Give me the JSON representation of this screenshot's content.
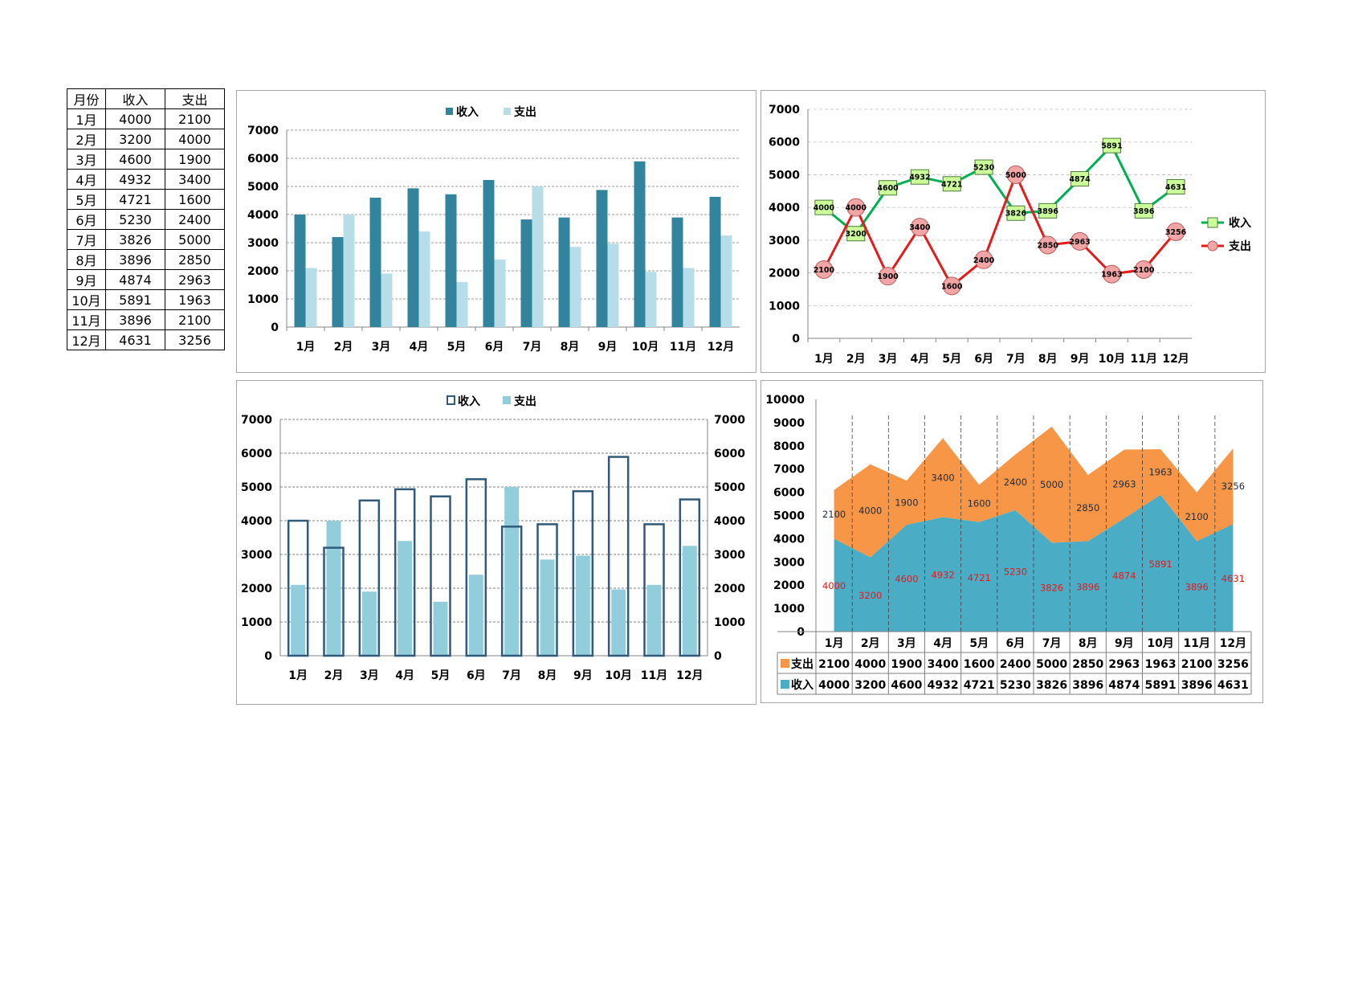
{
  "table": {
    "headers": [
      "月份",
      "收入",
      "支出"
    ],
    "rows": [
      [
        "1月",
        "4000",
        "2100"
      ],
      [
        "2月",
        "3200",
        "4000"
      ],
      [
        "3月",
        "4600",
        "1900"
      ],
      [
        "4月",
        "4932",
        "3400"
      ],
      [
        "5月",
        "4721",
        "1600"
      ],
      [
        "6月",
        "5230",
        "2400"
      ],
      [
        "7月",
        "3826",
        "5000"
      ],
      [
        "8月",
        "3896",
        "2850"
      ],
      [
        "9月",
        "4874",
        "2963"
      ],
      [
        "10月",
        "5891",
        "1963"
      ],
      [
        "11月",
        "3896",
        "2100"
      ],
      [
        "12月",
        "4631",
        "3256"
      ]
    ]
  },
  "chart_data": [
    {
      "id": "c1",
      "type": "bar",
      "categories": [
        "1月",
        "2月",
        "3月",
        "4月",
        "5月",
        "6月",
        "7月",
        "8月",
        "9月",
        "10月",
        "11月",
        "12月"
      ],
      "series": [
        {
          "name": "收入",
          "values": [
            4000,
            3200,
            4600,
            4932,
            4721,
            5230,
            3826,
            3896,
            4874,
            5891,
            3896,
            4631
          ],
          "color": "#31849b"
        },
        {
          "name": "支出",
          "values": [
            2100,
            4000,
            1900,
            3400,
            1600,
            2400,
            5000,
            2850,
            2963,
            1963,
            2100,
            3256
          ],
          "color": "#b7dee8"
        }
      ],
      "ylim": [
        0,
        7000
      ],
      "yticks": [
        0,
        1000,
        2000,
        3000,
        4000,
        5000,
        6000,
        7000
      ],
      "grid": true,
      "legend": "top"
    },
    {
      "id": "c2",
      "type": "line",
      "categories": [
        "1月",
        "2月",
        "3月",
        "4月",
        "5月",
        "6月",
        "7月",
        "8月",
        "9月",
        "10月",
        "11月",
        "12月"
      ],
      "series": [
        {
          "name": "收入",
          "values": [
            4000,
            3200,
            4600,
            4932,
            4721,
            5230,
            3826,
            3896,
            4874,
            5891,
            3896,
            4631
          ],
          "color": "#00b050",
          "marker": "square",
          "marker_color": "#ccff99"
        },
        {
          "name": "支出",
          "values": [
            2100,
            4000,
            1900,
            3400,
            1600,
            2400,
            5000,
            2850,
            2963,
            1963,
            2100,
            3256
          ],
          "color": "#e31b1b",
          "marker": "circle",
          "marker_color": "#f2a5a5"
        }
      ],
      "ylim": [
        0,
        7000
      ],
      "yticks": [
        0,
        1000,
        2000,
        3000,
        4000,
        5000,
        6000,
        7000
      ],
      "grid": true,
      "legend": "right",
      "data_labels": true
    },
    {
      "id": "c3",
      "type": "bar",
      "categories": [
        "1月",
        "2月",
        "3月",
        "4月",
        "5月",
        "6月",
        "7月",
        "8月",
        "9月",
        "10月",
        "11月",
        "12月"
      ],
      "series": [
        {
          "name": "收入",
          "values": [
            4000,
            3200,
            4600,
            4932,
            4721,
            5230,
            3826,
            3896,
            4874,
            5891,
            3896,
            4631
          ],
          "color": "#31597a",
          "style": "outline"
        },
        {
          "name": "支出",
          "values": [
            2100,
            4000,
            1900,
            3400,
            1600,
            2400,
            5000,
            2850,
            2963,
            1963,
            2100,
            3256
          ],
          "color": "#92cddc"
        }
      ],
      "ylim": [
        0,
        7000
      ],
      "yticks": [
        0,
        1000,
        2000,
        3000,
        4000,
        5000,
        6000,
        7000
      ],
      "secondary_y": true,
      "grid": true,
      "legend": "top"
    },
    {
      "id": "c4",
      "type": "area",
      "stacked": true,
      "categories": [
        "1月",
        "2月",
        "3月",
        "4月",
        "5月",
        "6月",
        "7月",
        "8月",
        "9月",
        "10月",
        "11月",
        "12月"
      ],
      "series": [
        {
          "name": "收入",
          "values": [
            4000,
            3200,
            4600,
            4932,
            4721,
            5230,
            3826,
            3896,
            4874,
            5891,
            3896,
            4631
          ],
          "color": "#4bacc6",
          "label_color": "#e31b1b"
        },
        {
          "name": "支出",
          "values": [
            2100,
            4000,
            1900,
            3400,
            1600,
            2400,
            5000,
            2850,
            2963,
            1963,
            2100,
            3256
          ],
          "color": "#f79646",
          "label_color": "#1f2d3d"
        }
      ],
      "ylim": [
        0,
        10000
      ],
      "yticks": [
        0,
        1000,
        2000,
        3000,
        4000,
        5000,
        6000,
        7000,
        8000,
        9000,
        10000
      ],
      "data_table": true,
      "data_labels": true
    }
  ]
}
